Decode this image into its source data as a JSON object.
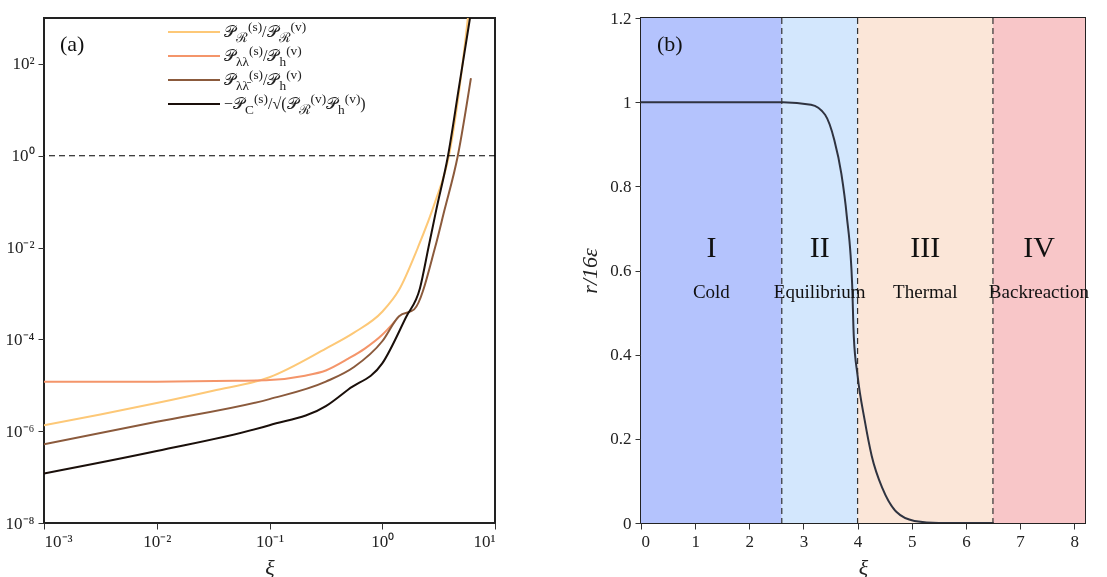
{
  "chart_data": [
    {
      "type": "line",
      "xlabel": "ξ",
      "log": "xy",
      "xlim": [
        0.001,
        10
      ],
      "ylim": [
        1e-08,
        1000
      ],
      "xticks": [
        {
          "value": 0.001,
          "label": "10⁻³"
        },
        {
          "value": 0.01,
          "label": "10⁻²"
        },
        {
          "value": 0.1,
          "label": "10⁻¹"
        },
        {
          "value": 1,
          "label": "10⁰"
        },
        {
          "value": 10,
          "label": "10¹"
        }
      ],
      "yticks": [
        {
          "value": 1e-08,
          "label": "10⁻⁸"
        },
        {
          "value": 1e-06,
          "label": "10⁻⁶"
        },
        {
          "value": 0.0001,
          "label": "10⁻⁴"
        },
        {
          "value": 0.01,
          "label": "10⁻²"
        },
        {
          "value": 1,
          "label": "10⁰"
        },
        {
          "value": 100,
          "label": "10²"
        }
      ],
      "legend": "top",
      "series": [
        {
          "name": "𝒫$_{ℛ}$$^{(s)}$/𝒫$_{ℛ}$$^{(v)}$",
          "color": "#fdc877",
          "x": [
            0.001,
            0.00316,
            0.01,
            0.0316,
            0.1,
            0.316,
            0.562,
            1,
            1.41,
            2.07,
            2.95,
            3.9,
            4.8,
            5.75
          ],
          "values": [
            1.35e-06,
            2.3e-06,
            4.1e-06,
            7.6e-06,
            1.5e-05,
            6.3e-05,
            0.00014,
            0.0004,
            0.0012,
            0.01,
            0.1,
            1,
            25,
            1000
          ]
        },
        {
          "name": "𝒫$_{λλ}$$^{(s)}$/𝒫$_{h}$$^{(v)}$",
          "color": "#f4956a",
          "x": [
            0.001,
            0.01,
            0.05,
            0.1,
            0.2,
            0.316,
            0.5,
            0.7,
            1,
            1.3
          ],
          "values": [
            1.2e-05,
            1.2e-05,
            1.25e-05,
            1.3e-05,
            1.6e-05,
            2.1e-05,
            3.8e-05,
            6.3e-05,
            0.000126,
            0.00025
          ]
        },
        {
          "name": "𝒫$_{λλ̄}$$^{(s)}$/𝒫$_{h}$$^{(v)}$",
          "color": "#8b5a3c",
          "x": [
            0.001,
            0.01,
            0.1,
            0.316,
            0.562,
            1,
            1.41,
            1.92,
            2.94,
            3.55,
            4.68,
            6.1
          ],
          "values": [
            5.2e-07,
            1.6e-06,
            5e-06,
            1.2e-05,
            2.5e-05,
            9.1e-05,
            0.00032,
            0.00045,
            0.01,
            0.063,
            1,
            47
          ]
        },
        {
          "name": "−𝒫$_{C}$$^{(s)}$/√(𝒫$_{ℛ}$$^{(v)}$𝒫$_{h}$$^{(v)}$)",
          "color": "#1a0f0a",
          "x": [
            0.001,
            0.01,
            0.1,
            0.316,
            0.5,
            1,
            1.62,
            2.16,
            2.57,
            3.0,
            3.83,
            4.8,
            6.0
          ],
          "values": [
            1.2e-07,
            3.7e-07,
            1.35e-06,
            3.5e-06,
            8.1e-06,
            3e-05,
            0.0003,
            0.0013,
            0.01,
            0.063,
            1,
            32,
            1000
          ]
        }
      ],
      "ref_lines": [
        {
          "axis": "y",
          "value": 1,
          "color": "#000000",
          "line_style": "dashed"
        }
      ],
      "annotations": [
        "(a)"
      ]
    },
    {
      "type": "line",
      "xlabel": "ξ",
      "ylabel": "r/16ε",
      "xlim": [
        0,
        8.2
      ],
      "ylim": [
        0,
        1.2
      ],
      "xticks": [
        0,
        1,
        2,
        3,
        4,
        5,
        6,
        7,
        8
      ],
      "yticks": [
        0,
        0.2,
        0.4,
        0.6,
        0.8,
        1,
        1.2
      ],
      "x": [
        0,
        1,
        2,
        2.62,
        3.14,
        3.4,
        3.57,
        3.7,
        3.8,
        3.9,
        3.93,
        4.0,
        4.13,
        4.26,
        4.46,
        4.72,
        5.05,
        5.5,
        6.0,
        6.5
      ],
      "series": [
        {
          "color": "#2f3340",
          "values": [
            1,
            1,
            1,
            1,
            0.994,
            0.97,
            0.91,
            0.83,
            0.73,
            0.566,
            0.443,
            0.35,
            0.245,
            0.16,
            0.082,
            0.026,
            0.005,
            0,
            0,
            0
          ]
        }
      ],
      "bands": [
        {
          "axis": "x",
          "from": 0,
          "to": 2.6,
          "color": "#b4c3fd",
          "label": "I"
        },
        {
          "axis": "x",
          "from": 2.6,
          "to": 4,
          "color": "#d3e7fd",
          "label": "II"
        },
        {
          "axis": "x",
          "from": 4,
          "to": 6.5,
          "color": "#fbe6d8",
          "label": "III"
        },
        {
          "axis": "x",
          "from": 6.5,
          "to": 8.2,
          "color": "#f8c6c8",
          "label": "IV"
        }
      ],
      "ref_lines": [
        {
          "axis": "x",
          "value": 2.6,
          "color": "#333333",
          "line_style": "dashed"
        },
        {
          "axis": "x",
          "value": 4,
          "color": "#333333",
          "line_style": "dashed"
        },
        {
          "axis": "x",
          "value": 6.5,
          "color": "#333333",
          "line_style": "dashed"
        }
      ],
      "annotations": [
        "(b)",
        "Cold",
        "Equilibrium",
        "Thermal",
        "Backreaction"
      ]
    }
  ]
}
